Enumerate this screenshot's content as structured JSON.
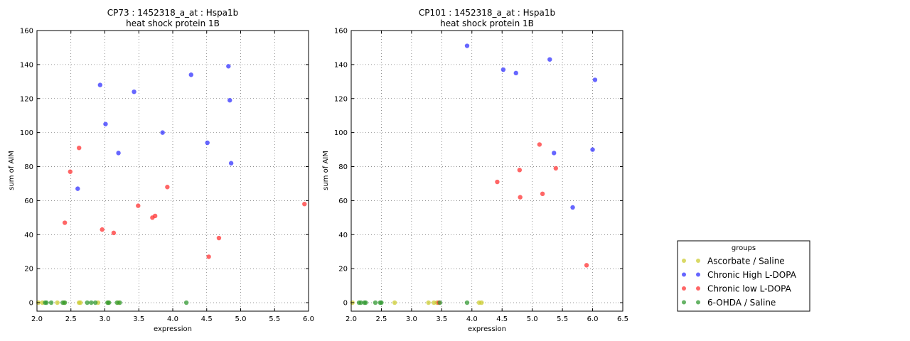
{
  "chart_data": [
    {
      "type": "scatter",
      "title": "CP73 : 1452318_a_at : Hspa1b",
      "subtitle": "heat shock protein 1B",
      "xlabel": "expression",
      "ylabel": "sum of AIM",
      "xlim": [
        2.0,
        6.0
      ],
      "ylim": [
        -5,
        160
      ],
      "xticks": [
        "2.0",
        "2.5",
        "3.0",
        "3.5",
        "4.0",
        "4.5",
        "5.0",
        "5.5",
        "6.0"
      ],
      "yticks": [
        "0",
        "20",
        "40",
        "60",
        "80",
        "100",
        "120",
        "140",
        "160"
      ],
      "grid": true,
      "series": [
        {
          "name": "Ascorbate / Saline",
          "color": "#cccc33",
          "points": [
            [
              2.02,
              0
            ],
            [
              2.08,
              0
            ],
            [
              2.3,
              0
            ],
            [
              2.4,
              0
            ],
            [
              2.62,
              0
            ],
            [
              2.64,
              0
            ],
            [
              2.9,
              0
            ],
            [
              3.05,
              0
            ],
            [
              3.2,
              0
            ]
          ]
        },
        {
          "name": "Chronic High L-DOPA",
          "color": "#3333ff",
          "points": [
            [
              2.6,
              67
            ],
            [
              2.93,
              128
            ],
            [
              3.01,
              105
            ],
            [
              3.2,
              88
            ],
            [
              3.43,
              124
            ],
            [
              3.85,
              100
            ],
            [
              4.27,
              134
            ],
            [
              4.51,
              94
            ],
            [
              4.82,
              139
            ],
            [
              4.84,
              119
            ],
            [
              4.86,
              82
            ]
          ]
        },
        {
          "name": "Chronic low L-DOPA",
          "color": "#ff3333",
          "points": [
            [
              2.41,
              47
            ],
            [
              2.49,
              77
            ],
            [
              2.62,
              91
            ],
            [
              2.96,
              43
            ],
            [
              3.13,
              41
            ],
            [
              3.49,
              57
            ],
            [
              3.7,
              50
            ],
            [
              3.74,
              51
            ],
            [
              3.92,
              68
            ],
            [
              4.53,
              27
            ],
            [
              4.68,
              38
            ],
            [
              5.94,
              58
            ]
          ]
        },
        {
          "name": "6-OHDA / Saline",
          "color": "#339933",
          "points": [
            [
              2.12,
              0
            ],
            [
              2.14,
              0
            ],
            [
              2.21,
              0
            ],
            [
              2.38,
              0
            ],
            [
              2.41,
              0
            ],
            [
              2.74,
              0
            ],
            [
              2.8,
              0
            ],
            [
              2.86,
              0
            ],
            [
              3.04,
              0
            ],
            [
              3.06,
              0
            ],
            [
              3.18,
              0
            ],
            [
              3.22,
              0
            ],
            [
              4.2,
              0
            ]
          ]
        }
      ]
    },
    {
      "type": "scatter",
      "title": "CP101 : 1452318_a_at : Hspa1b",
      "subtitle": "heat shock protein 1B",
      "xlabel": "expression",
      "ylabel": "sum of AIM",
      "xlim": [
        2.0,
        6.5
      ],
      "ylim": [
        -5,
        160
      ],
      "xticks": [
        "2.0",
        "2.5",
        "3.0",
        "3.5",
        "4.0",
        "4.5",
        "5.0",
        "5.5",
        "6.0",
        "6.5"
      ],
      "yticks": [
        "0",
        "20",
        "40",
        "60",
        "80",
        "100",
        "120",
        "140",
        "160"
      ],
      "grid": true,
      "series": [
        {
          "name": "Ascorbate / Saline",
          "color": "#cccc33",
          "points": [
            [
              2.02,
              0
            ],
            [
              2.72,
              0
            ],
            [
              3.28,
              0
            ],
            [
              3.37,
              0
            ],
            [
              3.42,
              0
            ],
            [
              4.12,
              0
            ],
            [
              4.16,
              0
            ]
          ]
        },
        {
          "name": "Chronic High L-DOPA",
          "color": "#3333ff",
          "points": [
            [
              3.92,
              151
            ],
            [
              4.52,
              137
            ],
            [
              4.73,
              135
            ],
            [
              5.29,
              143
            ],
            [
              5.36,
              88
            ],
            [
              5.67,
              56
            ],
            [
              6.0,
              90
            ],
            [
              6.04,
              131
            ]
          ]
        },
        {
          "name": "Chronic low L-DOPA",
          "color": "#ff3333",
          "points": [
            [
              3.45,
              0
            ],
            [
              4.42,
              71
            ],
            [
              4.79,
              78
            ],
            [
              4.8,
              62
            ],
            [
              5.12,
              93
            ],
            [
              5.17,
              64
            ],
            [
              5.39,
              79
            ],
            [
              5.9,
              22
            ]
          ]
        },
        {
          "name": "6-OHDA / Saline",
          "color": "#339933",
          "points": [
            [
              2.13,
              0
            ],
            [
              2.16,
              0
            ],
            [
              2.22,
              0
            ],
            [
              2.24,
              0
            ],
            [
              2.4,
              0
            ],
            [
              2.48,
              0
            ],
            [
              2.5,
              0
            ],
            [
              3.47,
              0
            ],
            [
              3.92,
              0
            ]
          ]
        }
      ]
    }
  ],
  "legend": {
    "title": "groups",
    "placement": "lower-right",
    "items": [
      {
        "label": "Ascorbate / Saline",
        "color": "#cccc33"
      },
      {
        "label": "Chronic High L-DOPA",
        "color": "#3333ff"
      },
      {
        "label": "Chronic low L-DOPA",
        "color": "#ff3333"
      },
      {
        "label": "6-OHDA / Saline",
        "color": "#339933"
      }
    ]
  }
}
